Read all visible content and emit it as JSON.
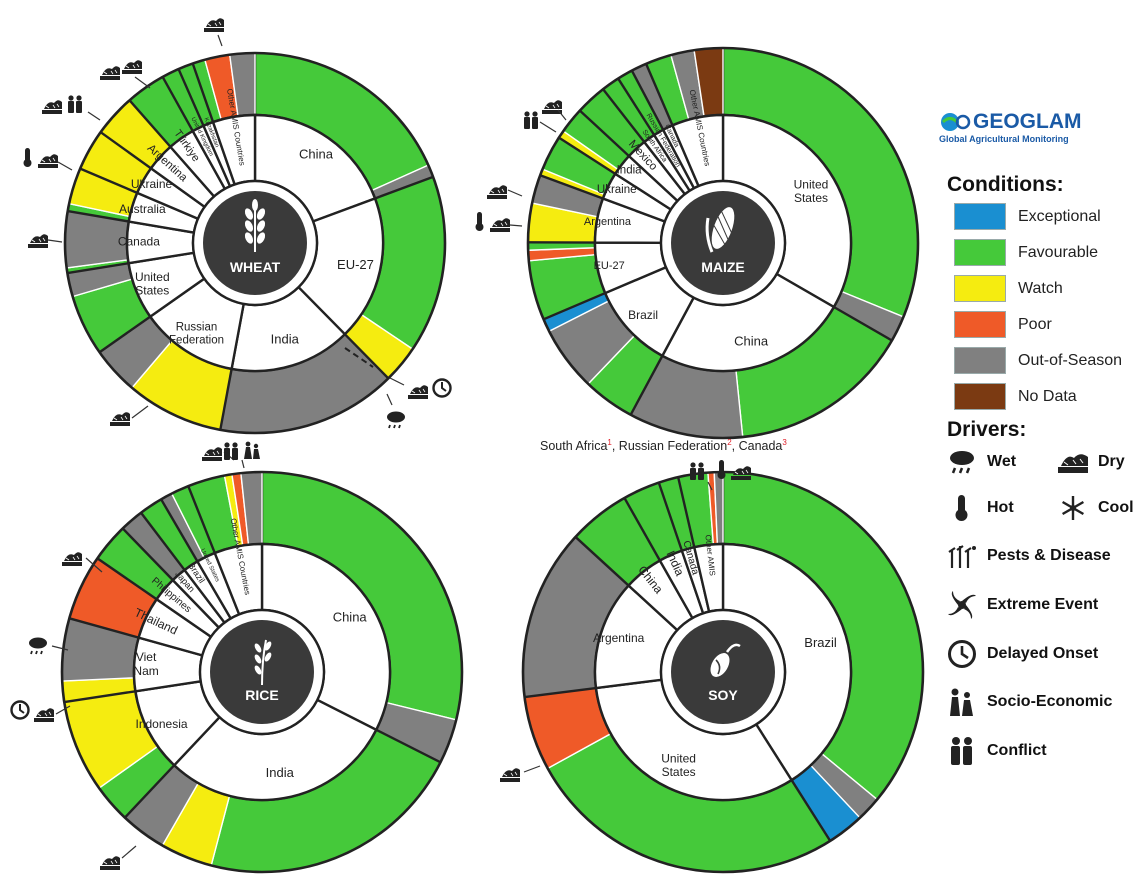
{
  "colors": {
    "Exceptional": "#1a8fd1",
    "Favourable": "#45c93a",
    "Watch": "#f5ec10",
    "Poor": "#ef5a28",
    "Out-of-Season": "#808080",
    "No Data": "#7b3a12",
    "dark_circle": "#3a3a3a"
  },
  "legend": {
    "logo_text": "GEOGLAM",
    "logo_subtitle": "Global Agricultural Monitoring",
    "conditions_heading": "Conditions:",
    "conditions": [
      {
        "label": "Exceptional",
        "color": "#1a8fd1"
      },
      {
        "label": "Favourable",
        "color": "#45c93a"
      },
      {
        "label": "Watch",
        "color": "#f5ec10"
      },
      {
        "label": "Poor",
        "color": "#ef5a28"
      },
      {
        "label": "Out-of-Season",
        "color": "#808080"
      },
      {
        "label": "No Data",
        "color": "#7b3a12"
      }
    ],
    "drivers_heading": "Drivers:",
    "drivers": [
      {
        "label": "Wet",
        "icon": "rain-cloud-icon"
      },
      {
        "label": "Dry",
        "icon": "cracked-earth-icon"
      },
      {
        "label": "Hot",
        "icon": "thermometer-icon"
      },
      {
        "label": "Cool",
        "icon": "snowflake-icon"
      },
      {
        "label": "Pests & Disease",
        "icon": "pest-icon"
      },
      {
        "label": "Extreme Event",
        "icon": "hurricane-icon"
      },
      {
        "label": "Delayed Onset",
        "icon": "clock-icon"
      },
      {
        "label": "Socio-Economic",
        "icon": "family-icon"
      },
      {
        "label": "Conflict",
        "icon": "people-conflict-icon"
      }
    ]
  },
  "soy_note": {
    "parts": [
      {
        "text": "South Africa",
        "sup": "1"
      },
      {
        "text": ", Russian Federation",
        "sup": "2"
      },
      {
        "text": ", Canada",
        "sup": "3"
      }
    ]
  },
  "chart_data": [
    {
      "type": "pie",
      "crop": "WHEAT",
      "countries": [
        {
          "name": "China",
          "share": 18.2,
          "conditions": [
            {
              "c": "Favourable",
              "v": 17.2
            },
            {
              "c": "Out-of-Season",
              "v": 1.0
            }
          ]
        },
        {
          "name": "EU-27",
          "share": 17.2,
          "conditions": [
            {
              "c": "Favourable",
              "v": 14.2
            },
            {
              "c": "Watch",
              "v": 3.0
            }
          ]
        },
        {
          "name": "India",
          "share": 14.4,
          "conditions": [
            {
              "c": "Out-of-Season",
              "v": 14.4
            }
          ]
        },
        {
          "name": "Russian Federation",
          "share": 11.6,
          "conditions": [
            {
              "c": "Watch",
              "v": 7.8
            },
            {
              "c": "Out-of-Season",
              "v": 3.8
            }
          ]
        },
        {
          "name": "United States",
          "share": 6.8,
          "conditions": [
            {
              "c": "Favourable",
              "v": 4.9
            },
            {
              "c": "Out-of-Season",
              "v": 1.9
            }
          ]
        },
        {
          "name": "Canada",
          "share": 4.9,
          "conditions": [
            {
              "c": "Favourable",
              "v": 0.4
            },
            {
              "c": "Out-of-Season",
              "v": 4.5
            }
          ]
        },
        {
          "name": "Australia",
          "share": 3.5,
          "conditions": [
            {
              "c": "Favourable",
              "v": 0.6
            },
            {
              "c": "Watch",
              "v": 2.9
            }
          ]
        },
        {
          "name": "Ukraine",
          "share": 3.3,
          "conditions": [
            {
              "c": "Watch",
              "v": 3.3
            }
          ]
        },
        {
          "name": "Argentina",
          "share": 3.4,
          "conditions": [
            {
              "c": "Watch",
              "v": 3.4
            }
          ]
        },
        {
          "name": "Türkiye",
          "share": 3.2,
          "conditions": [
            {
              "c": "Favourable",
              "v": 3.2
            }
          ]
        },
        {
          "name": "United Kingdom",
          "share": 1.4,
          "conditions": [
            {
              "c": "Favourable",
              "v": 1.4
            }
          ]
        },
        {
          "name": "Kazakhstan",
          "share": 1.2,
          "conditions": [
            {
              "c": "Favourable",
              "v": 1.2
            }
          ]
        },
        {
          "name": "Other AMIS Countries",
          "share": 5.0,
          "conditions": [
            {
              "c": "Favourable",
              "v": 1.0
            },
            {
              "c": "Poor",
              "v": 2.0
            },
            {
              "c": "Out-of-Season",
              "v": 2.0
            }
          ]
        }
      ]
    },
    {
      "type": "pie",
      "crop": "MAIZE",
      "countries": [
        {
          "name": "United States",
          "share": 31.0,
          "conditions": [
            {
              "c": "Favourable",
              "v": 29.0
            },
            {
              "c": "Out-of-Season",
              "v": 2.0
            }
          ]
        },
        {
          "name": "China",
          "share": 22.8,
          "conditions": [
            {
              "c": "Favourable",
              "v": 14.0
            },
            {
              "c": "Out-of-Season",
              "v": 8.8
            }
          ]
        },
        {
          "name": "Brazil",
          "share": 10.0,
          "conditions": [
            {
              "c": "Favourable",
              "v": 4.0
            },
            {
              "c": "Out-of-Season",
              "v": 5.0
            },
            {
              "c": "Exceptional",
              "v": 1.0
            }
          ]
        },
        {
          "name": "EU-27",
          "share": 6.0,
          "conditions": [
            {
              "c": "Favourable",
              "v": 4.6
            },
            {
              "c": "Poor",
              "v": 0.8
            },
            {
              "c": "Favourable",
              "v": 0.6
            }
          ]
        },
        {
          "name": "Argentina",
          "share": 5.2,
          "conditions": [
            {
              "c": "Watch",
              "v": 3.0
            },
            {
              "c": "Out-of-Season",
              "v": 2.2
            }
          ]
        },
        {
          "name": "Ukraine",
          "share": 3.2,
          "conditions": [
            {
              "c": "Watch",
              "v": 0.5
            },
            {
              "c": "Favourable",
              "v": 2.7
            }
          ]
        },
        {
          "name": "India",
          "share": 2.6,
          "conditions": [
            {
              "c": "Watch",
              "v": 0.6
            },
            {
              "c": "Favourable",
              "v": 2.0
            }
          ]
        },
        {
          "name": "Mexico",
          "share": 2.4,
          "conditions": [
            {
              "c": "Favourable",
              "v": 2.4
            }
          ]
        },
        {
          "name": "South Africa",
          "share": 1.4,
          "conditions": [
            {
              "c": "Favourable",
              "v": 1.4
            }
          ]
        },
        {
          "name": "Russian Federation",
          "share": 1.2,
          "conditions": [
            {
              "c": "Favourable",
              "v": 1.2
            }
          ]
        },
        {
          "name": "Canada",
          "share": 1.2,
          "conditions": [
            {
              "c": "Out-of-Season",
              "v": 1.2
            }
          ]
        },
        {
          "name": "Other AMIS Countries",
          "share": 6.0,
          "conditions": [
            {
              "c": "Favourable",
              "v": 2.0
            },
            {
              "c": "Out-of-Season",
              "v": 1.8
            },
            {
              "c": "No Data",
              "v": 2.2
            }
          ]
        }
      ]
    },
    {
      "type": "pie",
      "crop": "RICE",
      "countries": [
        {
          "name": "China",
          "share": 27.0,
          "conditions": [
            {
              "c": "Favourable",
              "v": 24.0
            },
            {
              "c": "Out-of-Season",
              "v": 3.0
            }
          ]
        },
        {
          "name": "India",
          "share": 24.6,
          "conditions": [
            {
              "c": "Favourable",
              "v": 18.0
            },
            {
              "c": "Watch",
              "v": 3.5
            },
            {
              "c": "Out-of-Season",
              "v": 3.1
            }
          ]
        },
        {
          "name": "Indonesia",
          "share": 8.8,
          "conditions": [
            {
              "c": "Favourable",
              "v": 2.6
            },
            {
              "c": "Watch",
              "v": 6.2
            }
          ]
        },
        {
          "name": "Viet Nam",
          "share": 5.6,
          "conditions": [
            {
              "c": "Watch",
              "v": 1.4
            },
            {
              "c": "Out-of-Season",
              "v": 4.2
            }
          ]
        },
        {
          "name": "Thailand",
          "share": 4.4,
          "conditions": [
            {
              "c": "Poor",
              "v": 4.4
            }
          ]
        },
        {
          "name": "Philippines",
          "share": 2.6,
          "conditions": [
            {
              "c": "Favourable",
              "v": 2.6
            }
          ]
        },
        {
          "name": "Japan",
          "share": 1.6,
          "conditions": [
            {
              "c": "Out-of-Season",
              "v": 1.6
            }
          ]
        },
        {
          "name": "Brazil",
          "share": 1.6,
          "conditions": [
            {
              "c": "Favourable",
              "v": 1.6
            }
          ]
        },
        {
          "name": "United States",
          "share": 2.0,
          "conditions": [
            {
              "c": "Out-of-Season",
              "v": 0.8
            },
            {
              "c": "Favourable",
              "v": 1.2
            }
          ]
        },
        {
          "name": "Other AMIS Countries",
          "share": 5.0,
          "conditions": [
            {
              "c": "Favourable",
              "v": 2.5
            },
            {
              "c": "Watch",
              "v": 0.5
            },
            {
              "c": "Poor",
              "v": 0.6
            },
            {
              "c": "Out-of-Season",
              "v": 1.4
            }
          ]
        }
      ]
    },
    {
      "type": "pie",
      "crop": "SOY",
      "countries": [
        {
          "name": "Brazil",
          "share": 41.0,
          "conditions": [
            {
              "c": "Favourable",
              "v": 36.0
            },
            {
              "c": "Out-of-Season",
              "v": 2.0
            },
            {
              "c": "Exceptional",
              "v": 3.0
            }
          ]
        },
        {
          "name": "United States",
          "share": 32.0,
          "conditions": [
            {
              "c": "Favourable",
              "v": 26.0
            },
            {
              "c": "Poor",
              "v": 6.0
            }
          ]
        },
        {
          "name": "Argentina",
          "share": 13.8,
          "conditions": [
            {
              "c": "Out-of-Season",
              "v": 13.8
            }
          ]
        },
        {
          "name": "China",
          "share": 5.0,
          "conditions": [
            {
              "c": "Favourable",
              "v": 5.0
            }
          ]
        },
        {
          "name": "India",
          "share": 3.0,
          "conditions": [
            {
              "c": "Favourable",
              "v": 3.0
            }
          ]
        },
        {
          "name": "Canada",
          "share": 1.6,
          "conditions": [
            {
              "c": "Favourable",
              "v": 1.6
            }
          ]
        },
        {
          "name": "Other AMIS",
          "share": 3.6,
          "conditions": [
            {
              "c": "Favourable",
              "v": 2.4
            },
            {
              "c": "Poor",
              "v": 0.5
            },
            {
              "c": "Out-of-Season",
              "v": 0.7
            }
          ]
        }
      ]
    }
  ]
}
